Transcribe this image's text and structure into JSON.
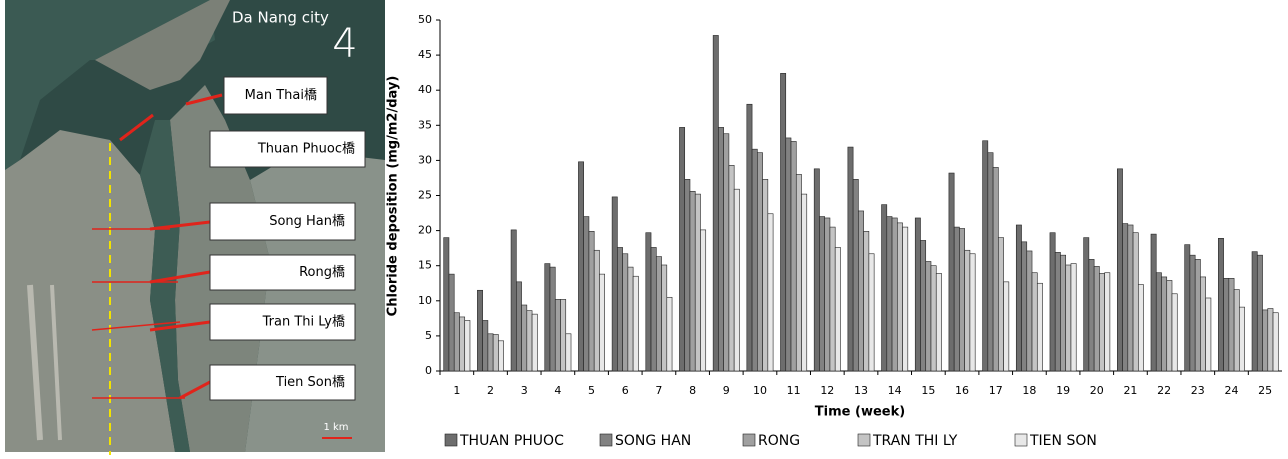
{
  "map": {
    "title": "Da Nang city",
    "north": "4",
    "scale": "1 km",
    "bridges": [
      "Man Thai橋",
      "Thuan Phuoc橋",
      "Song Han橋",
      "Rong橋",
      "Tran Thi Ly橋",
      "Tien Son橋"
    ]
  },
  "chart_data": {
    "type": "bar",
    "y_label": "Chloride deposition (mg/m2/day)",
    "x_label": "Time (week)",
    "categories": [
      "1",
      "2",
      "3",
      "4",
      "5",
      "6",
      "7",
      "8",
      "9",
      "10",
      "11",
      "12",
      "13",
      "14",
      "15",
      "16",
      "17",
      "18",
      "19",
      "20",
      "21",
      "22",
      "23",
      "24",
      "25"
    ],
    "series": [
      {
        "name": "THUAN PHUOC",
        "color": "#6d6d6d",
        "values": [
          19,
          11.5,
          20.1,
          15.3,
          29.8,
          24.8,
          19.7,
          34.7,
          47.8,
          38,
          42.4,
          28.8,
          31.9,
          23.7,
          21.8,
          28.2,
          32.8,
          20.8,
          19.7,
          19,
          28.8,
          19.5,
          18,
          18.9,
          17
        ]
      },
      {
        "name": "SONG HAN",
        "color": "#828282",
        "values": [
          13.8,
          7.2,
          12.7,
          14.8,
          22,
          17.6,
          17.6,
          27.3,
          34.7,
          31.6,
          33.2,
          22,
          27.3,
          22,
          18.6,
          20.5,
          31.1,
          18.4,
          16.9,
          15.9,
          21,
          14,
          16.5,
          13.2,
          16.5
        ]
      },
      {
        "name": "RONG",
        "color": "#a0a0a0",
        "values": [
          8.3,
          5.3,
          9.4,
          10.2,
          19.9,
          16.7,
          16.3,
          25.6,
          33.8,
          31.1,
          32.7,
          21.8,
          22.8,
          21.8,
          15.6,
          20.3,
          29,
          17.1,
          16.5,
          14.9,
          20.8,
          13.4,
          15.9,
          13.2,
          8.7
        ]
      },
      {
        "name": "TRAN THI LY",
        "color": "#c4c4c4",
        "values": [
          7.7,
          5.2,
          8.6,
          10.2,
          17.2,
          14.8,
          15.1,
          25.2,
          29.3,
          27.3,
          28,
          20.5,
          19.9,
          21.1,
          15,
          17.2,
          19,
          14,
          15.1,
          13.9,
          19.7,
          12.9,
          13.4,
          11.6,
          8.9
        ]
      },
      {
        "name": "TIEN SON",
        "color": "#e8e8e8",
        "values": [
          7.2,
          4.3,
          8.1,
          5.3,
          13.8,
          13.5,
          10.5,
          20.1,
          25.9,
          22.4,
          25.2,
          17.6,
          16.7,
          20.5,
          13.9,
          16.7,
          12.7,
          12.5,
          15.3,
          14,
          12.3,
          11,
          10.4,
          9.1,
          8.3
        ]
      }
    ],
    "ylim": [
      0,
      50
    ],
    "yticks": [
      0,
      5,
      10,
      15,
      20,
      25,
      30,
      35,
      40,
      45,
      50
    ],
    "grid": false
  }
}
